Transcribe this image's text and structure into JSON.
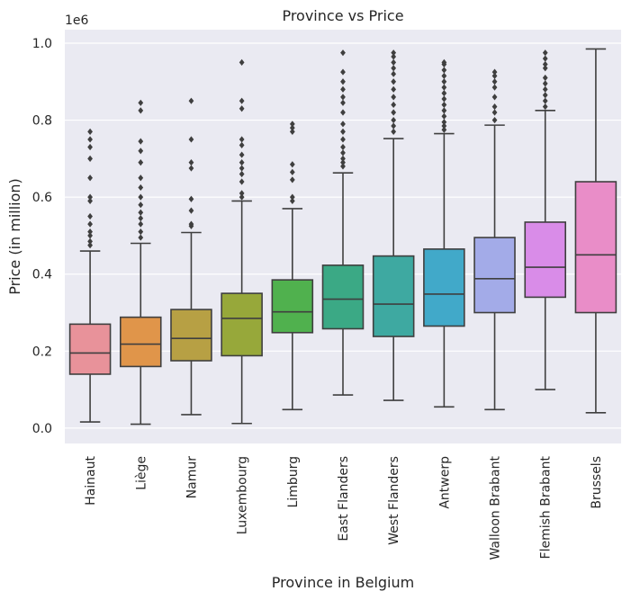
{
  "chart_data": {
    "type": "box",
    "title": "Province vs Price",
    "xlabel": "Province in Belgium",
    "ylabel": "Price (in million)",
    "y_offset_label": "1e6",
    "ylim": [
      -0.04,
      1.035
    ],
    "yticks": [
      0.0,
      0.2,
      0.4,
      0.6,
      0.8,
      1.0
    ],
    "ytick_labels": [
      "0.0",
      "0.2",
      "0.4",
      "0.6",
      "0.8",
      "1.0"
    ],
    "grid": true,
    "background": "#eaeaf2",
    "categories": [
      "Hainaut",
      "Liège",
      "Namur",
      "Luxembourg",
      "Limburg",
      "East Flanders",
      "West Flanders",
      "Antwerp",
      "Walloon Brabant",
      "Flemish Brabant",
      "Brussels"
    ],
    "colors": [
      "#e8929a",
      "#e0954a",
      "#b7a044",
      "#97a83a",
      "#50b14e",
      "#3ba985",
      "#3ea9a1",
      "#41a9c9",
      "#a3abe8",
      "#d98ce8",
      "#e98dc8"
    ],
    "boxes": [
      {
        "whisker_low": 0.016,
        "q1": 0.14,
        "median": 0.195,
        "q3": 0.27,
        "whisker_high": 0.46,
        "outliers": [
          0.475,
          0.485,
          0.5,
          0.51,
          0.53,
          0.55,
          0.59,
          0.6,
          0.65,
          0.7,
          0.73,
          0.75,
          0.77
        ]
      },
      {
        "whisker_low": 0.01,
        "q1": 0.16,
        "median": 0.218,
        "q3": 0.288,
        "whisker_high": 0.48,
        "outliers": [
          0.495,
          0.51,
          0.53,
          0.545,
          0.56,
          0.58,
          0.6,
          0.625,
          0.65,
          0.69,
          0.72,
          0.745,
          0.825,
          0.845
        ]
      },
      {
        "whisker_low": 0.035,
        "q1": 0.175,
        "median": 0.233,
        "q3": 0.308,
        "whisker_high": 0.508,
        "outliers": [
          0.525,
          0.53,
          0.565,
          0.595,
          0.675,
          0.69,
          0.75,
          0.85
        ]
      },
      {
        "whisker_low": 0.012,
        "q1": 0.188,
        "median": 0.285,
        "q3": 0.35,
        "whisker_high": 0.59,
        "outliers": [
          0.6,
          0.61,
          0.64,
          0.66,
          0.675,
          0.69,
          0.71,
          0.735,
          0.75,
          0.83,
          0.85,
          0.95
        ]
      },
      {
        "whisker_low": 0.048,
        "q1": 0.248,
        "median": 0.302,
        "q3": 0.385,
        "whisker_high": 0.57,
        "outliers": [
          0.59,
          0.6,
          0.645,
          0.665,
          0.685,
          0.77,
          0.78,
          0.79
        ]
      },
      {
        "whisker_low": 0.086,
        "q1": 0.258,
        "median": 0.335,
        "q3": 0.423,
        "whisker_high": 0.663,
        "outliers": [
          0.68,
          0.69,
          0.7,
          0.715,
          0.73,
          0.75,
          0.77,
          0.79,
          0.82,
          0.845,
          0.86,
          0.88,
          0.9,
          0.925,
          0.975
        ]
      },
      {
        "whisker_low": 0.072,
        "q1": 0.238,
        "median": 0.322,
        "q3": 0.447,
        "whisker_high": 0.752,
        "outliers": [
          0.77,
          0.785,
          0.8,
          0.82,
          0.84,
          0.86,
          0.88,
          0.9,
          0.92,
          0.935,
          0.95,
          0.965,
          0.975
        ]
      },
      {
        "whisker_low": 0.055,
        "q1": 0.265,
        "median": 0.348,
        "q3": 0.465,
        "whisker_high": 0.765,
        "outliers": [
          0.775,
          0.785,
          0.795,
          0.81,
          0.825,
          0.84,
          0.855,
          0.87,
          0.885,
          0.9,
          0.915,
          0.93,
          0.945,
          0.95
        ]
      },
      {
        "whisker_low": 0.048,
        "q1": 0.3,
        "median": 0.388,
        "q3": 0.495,
        "whisker_high": 0.787,
        "outliers": [
          0.8,
          0.82,
          0.835,
          0.86,
          0.885,
          0.9,
          0.915,
          0.925
        ]
      },
      {
        "whisker_low": 0.1,
        "q1": 0.34,
        "median": 0.418,
        "q3": 0.535,
        "whisker_high": 0.825,
        "outliers": [
          0.835,
          0.85,
          0.865,
          0.88,
          0.895,
          0.91,
          0.935,
          0.945,
          0.96,
          0.975
        ]
      },
      {
        "whisker_low": 0.04,
        "q1": 0.3,
        "median": 0.45,
        "q3": 0.64,
        "whisker_high": 0.985,
        "outliers": []
      }
    ]
  }
}
